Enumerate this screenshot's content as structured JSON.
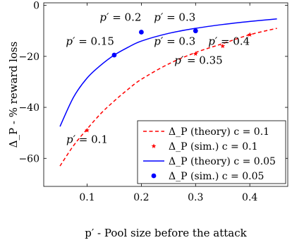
{
  "chart_data": {
    "type": "line",
    "xlabel": "p′ - Pool size before the attack",
    "ylabel": "Δ_P - % reward loss",
    "xlim": [
      0.02,
      0.47
    ],
    "ylim": [
      -71,
      1
    ],
    "x_ticks": [
      0.1,
      0.2,
      0.3,
      0.4
    ],
    "x_tick_labels": [
      "0.1",
      "0.2",
      "0.3",
      "0.4"
    ],
    "y_ticks": [
      -60,
      -40,
      -20,
      0
    ],
    "y_tick_labels": [
      "−60",
      "−40",
      "−20",
      "0"
    ],
    "grid": false,
    "legend_position": "bottom-right",
    "series": [
      {
        "name": "Δ_P (theory) c = 0.1",
        "kind": "line",
        "style": "dashed",
        "color": "#ff0000",
        "x": [
          0.05,
          0.075,
          0.1,
          0.125,
          0.15,
          0.175,
          0.2,
          0.25,
          0.3,
          0.35,
          0.4,
          0.45
        ],
        "y": [
          -63,
          -55,
          -48.5,
          -42.5,
          -37.5,
          -33,
          -29,
          -23,
          -18.5,
          -15,
          -11.5,
          -9
        ]
      },
      {
        "name": "Δ_P (sim.) c = 0.1",
        "kind": "scatter",
        "marker": "star",
        "color": "#ff0000",
        "x": [
          0.1,
          0.3,
          0.35,
          0.4
        ],
        "y": [
          -49,
          -19,
          -16,
          -11.5
        ]
      },
      {
        "name": "Δ_P (theory) c = 0.05",
        "kind": "line",
        "style": "solid",
        "color": "#0000ff",
        "x": [
          0.05,
          0.075,
          0.1,
          0.125,
          0.15,
          0.175,
          0.2,
          0.25,
          0.3,
          0.35,
          0.4,
          0.45
        ],
        "y": [
          -47.5,
          -36,
          -28.5,
          -23.5,
          -19.5,
          -16.5,
          -14,
          -11,
          -9,
          -7.5,
          -6.3,
          -5.3
        ]
      },
      {
        "name": "Δ_P (sim.) c = 0.05",
        "kind": "scatter",
        "marker": "circle",
        "color": "#0000ff",
        "x": [
          0.15,
          0.2,
          0.3
        ],
        "y": [
          -19.5,
          -10.5,
          -10
        ]
      }
    ],
    "annotations": [
      {
        "p": "p′",
        "rel": " = 0.2",
        "x": 0.2,
        "y": -6,
        "anchor": "end"
      },
      {
        "p": "p′",
        "rel": " = 0.3",
        "x": 0.3,
        "y": -6,
        "anchor": "end"
      },
      {
        "p": "p′",
        "rel": " = 0.15",
        "x": 0.15,
        "y": -15.5,
        "anchor": "end"
      },
      {
        "p": "p′",
        "rel": " = 0.3",
        "x": 0.3,
        "y": -15.5,
        "anchor": "end"
      },
      {
        "p": "p′",
        "rel": " = 0.4",
        "x": 0.4,
        "y": -15.5,
        "anchor": "end"
      },
      {
        "p": "p′",
        "rel": " = 0.35",
        "x": 0.35,
        "y": -23,
        "anchor": "end"
      },
      {
        "p": "p′",
        "rel": " = 0.1",
        "x": 0.1,
        "y": -54,
        "anchor": "middle"
      }
    ]
  }
}
